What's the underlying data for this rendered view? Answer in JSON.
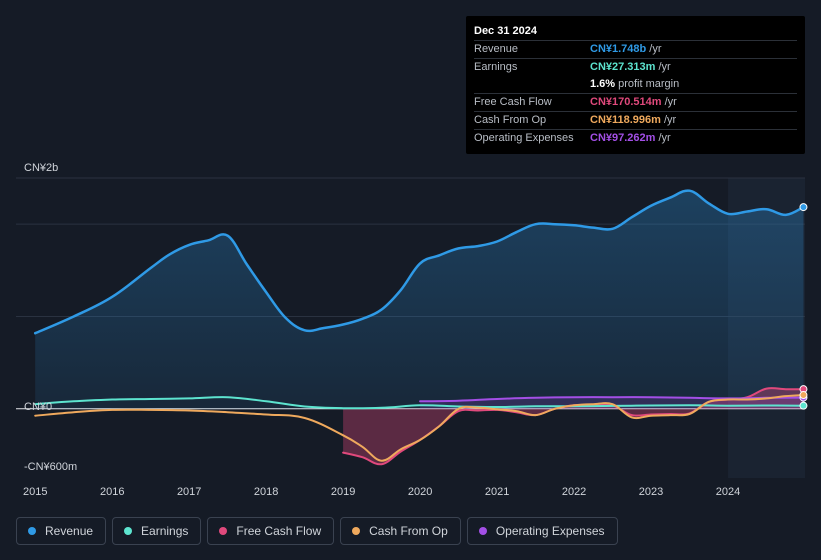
{
  "tooltip": {
    "date": "Dec 31 2024",
    "rows": [
      {
        "label": "Revenue",
        "value": "CN¥1.748b",
        "unit": "/yr",
        "color": "#2f9ae6"
      },
      {
        "label": "Earnings",
        "value": "CN¥27.313m",
        "unit": "/yr",
        "color": "#5de4cf"
      },
      {
        "label": "",
        "value": "1.6%",
        "unit": "profit margin",
        "color": "#ffffff"
      },
      {
        "label": "Free Cash Flow",
        "value": "CN¥170.514m",
        "unit": "/yr",
        "color": "#e0497c"
      },
      {
        "label": "Cash From Op",
        "value": "CN¥118.996m",
        "unit": "/yr",
        "color": "#efa95d"
      },
      {
        "label": "Operating Expenses",
        "value": "CN¥97.262m",
        "unit": "/yr",
        "color": "#a34fe6"
      }
    ]
  },
  "legend": [
    {
      "label": "Revenue",
      "color": "#2f9ae6"
    },
    {
      "label": "Earnings",
      "color": "#5de4cf"
    },
    {
      "label": "Free Cash Flow",
      "color": "#e0497c"
    },
    {
      "label": "Cash From Op",
      "color": "#efa95d"
    },
    {
      "label": "Operating Expenses",
      "color": "#a34fe6"
    }
  ],
  "chart_data": {
    "type": "area",
    "title": "",
    "ylabel_top": "CN¥2b",
    "ylabel_zero": "CN¥0",
    "ylabel_bottom": "-CN¥600m",
    "ylim": [
      -600,
      2000
    ],
    "xlim": [
      2014.75,
      2025.0
    ],
    "x_ticks": [
      2015,
      2016,
      2017,
      2018,
      2019,
      2020,
      2021,
      2022,
      2023,
      2024
    ],
    "x_tick_labels": [
      "2015",
      "2016",
      "2017",
      "2018",
      "2019",
      "2020",
      "2021",
      "2022",
      "2023",
      "2024"
    ],
    "forecast_start": 2024,
    "series": [
      {
        "name": "Revenue",
        "color": "#2f9ae6",
        "fill": true,
        "x": [
          2015.0,
          2015.5,
          2016.0,
          2016.5,
          2016.75,
          2017.0,
          2017.25,
          2017.5,
          2017.75,
          2018.0,
          2018.25,
          2018.5,
          2018.75,
          2019.0,
          2019.25,
          2019.5,
          2019.75,
          2020.0,
          2020.25,
          2020.5,
          2020.75,
          2021.0,
          2021.25,
          2021.5,
          2021.75,
          2022.0,
          2022.25,
          2022.5,
          2022.75,
          2023.0,
          2023.25,
          2023.5,
          2023.75,
          2024.0,
          2024.25,
          2024.5,
          2024.75,
          2024.98
        ],
        "values": [
          655,
          800,
          970,
          1220,
          1340,
          1420,
          1460,
          1500,
          1250,
          1010,
          790,
          680,
          700,
          730,
          780,
          860,
          1030,
          1260,
          1330,
          1390,
          1410,
          1450,
          1530,
          1600,
          1600,
          1590,
          1570,
          1560,
          1660,
          1760,
          1830,
          1890,
          1780,
          1690,
          1710,
          1730,
          1680,
          1748
        ]
      },
      {
        "name": "Earnings",
        "color": "#5de4cf",
        "fill": false,
        "x": [
          2015.0,
          2015.5,
          2016.0,
          2016.5,
          2017.0,
          2017.5,
          2018.0,
          2018.5,
          2019.0,
          2019.5,
          2020.0,
          2020.5,
          2021.0,
          2021.5,
          2022.0,
          2022.5,
          2023.0,
          2023.5,
          2024.0,
          2024.5,
          2024.98
        ],
        "values": [
          40,
          65,
          80,
          85,
          90,
          100,
          65,
          20,
          5,
          8,
          30,
          20,
          15,
          22,
          22,
          25,
          28,
          30,
          27,
          28,
          27
        ]
      },
      {
        "name": "Free Cash Flow",
        "color": "#e0497c",
        "fill": true,
        "x": [
          2019.0,
          2019.25,
          2019.5,
          2019.75,
          2020.0,
          2020.25,
          2020.5,
          2020.75,
          2021.0,
          2021.25,
          2021.5,
          2021.75,
          2022.0,
          2022.25,
          2022.5,
          2022.75,
          2023.0,
          2023.25,
          2023.5,
          2023.75,
          2024.0,
          2024.25,
          2024.5,
          2024.75,
          2024.98
        ],
        "values": [
          -380,
          -420,
          -480,
          -370,
          -270,
          -150,
          -20,
          -15,
          -10,
          -30,
          -55,
          0,
          30,
          30,
          30,
          -55,
          -50,
          -45,
          -40,
          60,
          80,
          100,
          175,
          170,
          170
        ]
      },
      {
        "name": "Cash From Op",
        "color": "#efa95d",
        "fill": false,
        "x": [
          2015.0,
          2015.5,
          2016.0,
          2016.5,
          2017.0,
          2017.5,
          2018.0,
          2018.5,
          2019.0,
          2019.25,
          2019.5,
          2019.75,
          2020.0,
          2020.25,
          2020.5,
          2020.75,
          2021.0,
          2021.25,
          2021.5,
          2021.75,
          2022.0,
          2022.25,
          2022.5,
          2022.75,
          2023.0,
          2023.25,
          2023.5,
          2023.75,
          2024.0,
          2024.25,
          2024.5,
          2024.75,
          2024.98
        ],
        "values": [
          -60,
          -30,
          -10,
          -10,
          -15,
          -30,
          -50,
          -80,
          -230,
          -330,
          -450,
          -350,
          -270,
          -150,
          0,
          10,
          -5,
          -20,
          -55,
          0,
          30,
          40,
          40,
          -75,
          -60,
          -55,
          -45,
          60,
          80,
          80,
          90,
          110,
          119
        ]
      },
      {
        "name": "Operating Expenses",
        "color": "#a34fe6",
        "fill": true,
        "x": [
          2020.0,
          2020.5,
          2021.0,
          2021.5,
          2022.0,
          2022.5,
          2023.0,
          2023.5,
          2024.0,
          2024.5,
          2024.98
        ],
        "values": [
          65,
          70,
          85,
          95,
          100,
          100,
          100,
          95,
          90,
          95,
          97
        ]
      }
    ]
  }
}
